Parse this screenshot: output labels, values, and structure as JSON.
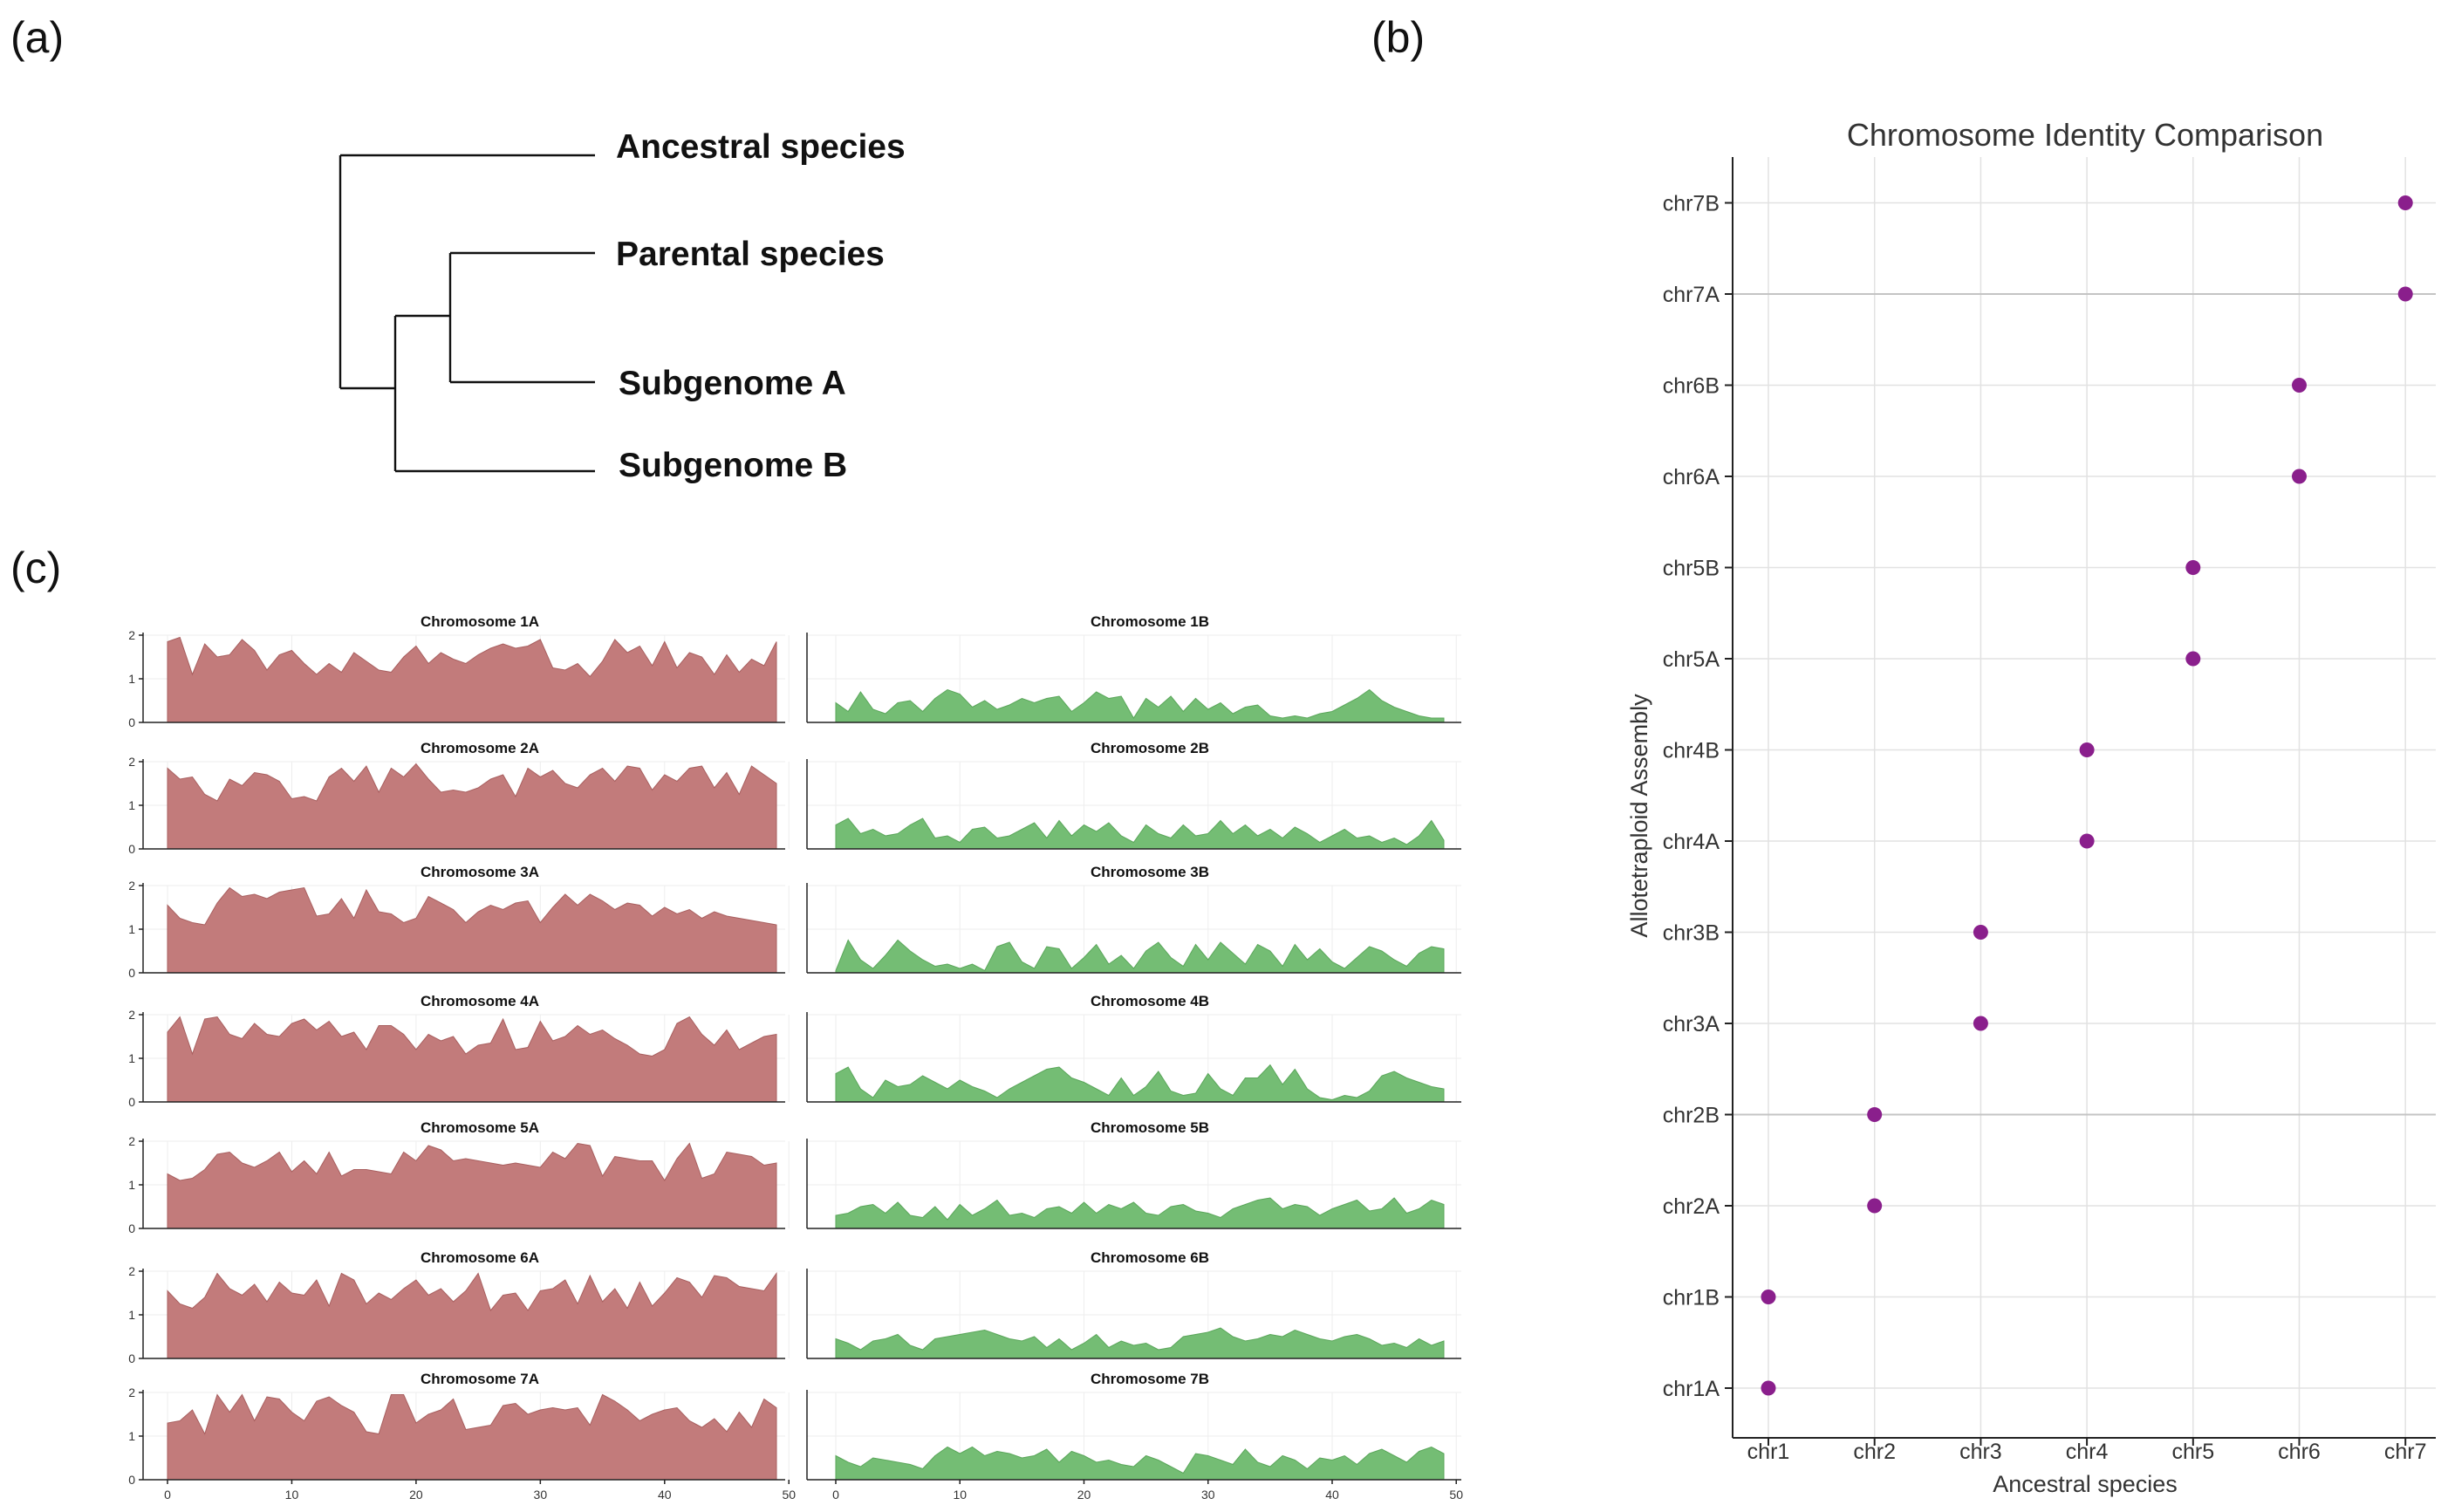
{
  "colors": {
    "subgenome_a_fill": "#c27b7b",
    "subgenome_a_stroke": "#a85f5f",
    "subgenome_b_fill": "#74bd74",
    "subgenome_b_stroke": "#5aa65a",
    "point_color": "#8a1f8c",
    "tree_line": "#111111"
  },
  "panels": {
    "a": {
      "label": "(a)"
    },
    "b": {
      "label": "(b)"
    },
    "c": {
      "label": "(c)"
    }
  },
  "tree": {
    "leaves": [
      "Ancestral species",
      "Parental species",
      "Subgenome A",
      "Subgenome B"
    ]
  },
  "chart_data": [
    {
      "id": "identity-comparison",
      "type": "scatter",
      "title": "Chromosome Identity Comparison",
      "xlabel": "Ancestral species",
      "ylabel": "Allotetraploid Assembly",
      "x_categories": [
        "chr1",
        "chr2",
        "chr3",
        "chr4",
        "chr5",
        "chr6",
        "chr7"
      ],
      "y_categories": [
        "chr1A",
        "chr1B",
        "chr2A",
        "chr2B",
        "chr3A",
        "chr3B",
        "chr4A",
        "chr4B",
        "chr5A",
        "chr5B",
        "chr6A",
        "chr6B",
        "chr7A",
        "chr7B"
      ],
      "points": [
        {
          "x": "chr1",
          "y": "chr1A"
        },
        {
          "x": "chr1",
          "y": "chr1B"
        },
        {
          "x": "chr2",
          "y": "chr2A"
        },
        {
          "x": "chr2",
          "y": "chr2B"
        },
        {
          "x": "chr3",
          "y": "chr3A"
        },
        {
          "x": "chr3",
          "y": "chr3B"
        },
        {
          "x": "chr4",
          "y": "chr4A"
        },
        {
          "x": "chr4",
          "y": "chr4B"
        },
        {
          "x": "chr5",
          "y": "chr5A"
        },
        {
          "x": "chr5",
          "y": "chr5B"
        },
        {
          "x": "chr6",
          "y": "chr6A"
        },
        {
          "x": "chr6",
          "y": "chr6B"
        },
        {
          "x": "chr7",
          "y": "chr7A"
        },
        {
          "x": "chr7",
          "y": "chr7B"
        }
      ],
      "highlighted_rows": [
        "chr2B",
        "chr7A"
      ],
      "grid": true
    },
    {
      "id": "chromosome-density",
      "type": "area",
      "xlim": [
        0,
        50
      ],
      "ylim": [
        0,
        2
      ],
      "xticks": [
        0,
        10,
        20,
        30,
        40,
        50
      ],
      "yticks": [
        0,
        1,
        2
      ],
      "x_start": 0,
      "x_end": 49,
      "subgenome_a": [
        {
          "name": "Chromosome 1A",
          "values": [
            1.85,
            1.95,
            1.1,
            1.8,
            1.5,
            1.55,
            1.9,
            1.65,
            1.2,
            1.55,
            1.65,
            1.35,
            1.1,
            1.35,
            1.15,
            1.6,
            1.4,
            1.2,
            1.15,
            1.5,
            1.75,
            1.35,
            1.6,
            1.45,
            1.35,
            1.55,
            1.7,
            1.8,
            1.7,
            1.75,
            1.9,
            1.25,
            1.2,
            1.35,
            1.05,
            1.4,
            1.9,
            1.6,
            1.75,
            1.3,
            1.85,
            1.25,
            1.6,
            1.5,
            1.1,
            1.55,
            1.15,
            1.45,
            1.3,
            1.85
          ]
        },
        {
          "name": "Chromosome 2A",
          "values": [
            1.85,
            1.6,
            1.65,
            1.25,
            1.1,
            1.6,
            1.45,
            1.75,
            1.7,
            1.55,
            1.15,
            1.2,
            1.1,
            1.65,
            1.85,
            1.55,
            1.9,
            1.3,
            1.85,
            1.65,
            1.95,
            1.6,
            1.3,
            1.35,
            1.3,
            1.4,
            1.6,
            1.7,
            1.2,
            1.85,
            1.65,
            1.8,
            1.5,
            1.4,
            1.7,
            1.85,
            1.55,
            1.9,
            1.85,
            1.35,
            1.7,
            1.55,
            1.85,
            1.9,
            1.4,
            1.75,
            1.25,
            1.9,
            1.7,
            1.5
          ]
        },
        {
          "name": "Chromosome 3A",
          "values": [
            1.55,
            1.25,
            1.15,
            1.1,
            1.6,
            1.95,
            1.75,
            1.8,
            1.7,
            1.85,
            1.9,
            1.95,
            1.3,
            1.35,
            1.7,
            1.25,
            1.9,
            1.4,
            1.35,
            1.15,
            1.25,
            1.75,
            1.6,
            1.45,
            1.15,
            1.4,
            1.55,
            1.45,
            1.6,
            1.65,
            1.15,
            1.5,
            1.8,
            1.55,
            1.8,
            1.65,
            1.45,
            1.6,
            1.55,
            1.3,
            1.5,
            1.35,
            1.45,
            1.25,
            1.4,
            1.3,
            1.25,
            1.2,
            1.15,
            1.1
          ]
        },
        {
          "name": "Chromosome 4A",
          "values": [
            1.6,
            1.95,
            1.1,
            1.9,
            1.95,
            1.55,
            1.45,
            1.8,
            1.55,
            1.5,
            1.8,
            1.9,
            1.65,
            1.85,
            1.5,
            1.6,
            1.2,
            1.75,
            1.75,
            1.55,
            1.2,
            1.55,
            1.4,
            1.5,
            1.1,
            1.3,
            1.35,
            1.9,
            1.2,
            1.25,
            1.85,
            1.4,
            1.5,
            1.75,
            1.55,
            1.65,
            1.45,
            1.3,
            1.1,
            1.05,
            1.2,
            1.8,
            1.95,
            1.55,
            1.3,
            1.65,
            1.2,
            1.35,
            1.5,
            1.55
          ]
        },
        {
          "name": "Chromosome 5A",
          "values": [
            1.25,
            1.1,
            1.15,
            1.35,
            1.7,
            1.75,
            1.5,
            1.4,
            1.55,
            1.75,
            1.3,
            1.55,
            1.25,
            1.75,
            1.2,
            1.35,
            1.35,
            1.3,
            1.25,
            1.75,
            1.55,
            1.9,
            1.8,
            1.55,
            1.6,
            1.55,
            1.5,
            1.45,
            1.5,
            1.45,
            1.4,
            1.75,
            1.6,
            1.95,
            1.9,
            1.2,
            1.65,
            1.6,
            1.55,
            1.55,
            1.1,
            1.6,
            1.95,
            1.15,
            1.25,
            1.75,
            1.7,
            1.65,
            1.45,
            1.5
          ]
        },
        {
          "name": "Chromosome 6A",
          "values": [
            1.55,
            1.25,
            1.15,
            1.4,
            1.95,
            1.6,
            1.45,
            1.7,
            1.3,
            1.75,
            1.5,
            1.45,
            1.8,
            1.2,
            1.95,
            1.8,
            1.25,
            1.5,
            1.35,
            1.6,
            1.8,
            1.45,
            1.6,
            1.3,
            1.55,
            1.95,
            1.1,
            1.45,
            1.5,
            1.1,
            1.55,
            1.6,
            1.8,
            1.25,
            1.9,
            1.3,
            1.6,
            1.15,
            1.75,
            1.2,
            1.5,
            1.85,
            1.75,
            1.4,
            1.9,
            1.85,
            1.65,
            1.6,
            1.55,
            1.95
          ]
        },
        {
          "name": "Chromosome 7A",
          "values": [
            1.3,
            1.35,
            1.6,
            1.05,
            1.95,
            1.55,
            1.95,
            1.35,
            1.9,
            1.85,
            1.55,
            1.35,
            1.8,
            1.9,
            1.7,
            1.55,
            1.1,
            1.05,
            1.95,
            1.95,
            1.3,
            1.5,
            1.6,
            1.85,
            1.15,
            1.2,
            1.25,
            1.7,
            1.75,
            1.5,
            1.6,
            1.65,
            1.6,
            1.65,
            1.25,
            1.95,
            1.8,
            1.6,
            1.35,
            1.5,
            1.6,
            1.65,
            1.35,
            1.2,
            1.4,
            1.1,
            1.55,
            1.2,
            1.85,
            1.65
          ]
        }
      ],
      "subgenome_b": [
        {
          "name": "Chromosome 1B",
          "values": [
            0.45,
            0.25,
            0.7,
            0.3,
            0.2,
            0.45,
            0.5,
            0.25,
            0.55,
            0.75,
            0.65,
            0.35,
            0.5,
            0.3,
            0.4,
            0.55,
            0.45,
            0.55,
            0.6,
            0.25,
            0.45,
            0.7,
            0.55,
            0.6,
            0.1,
            0.55,
            0.35,
            0.6,
            0.25,
            0.55,
            0.3,
            0.45,
            0.2,
            0.35,
            0.4,
            0.15,
            0.1,
            0.15,
            0.1,
            0.2,
            0.25,
            0.4,
            0.55,
            0.75,
            0.5,
            0.35,
            0.25,
            0.15,
            0.1,
            0.1
          ]
        },
        {
          "name": "Chromosome 2B",
          "values": [
            0.55,
            0.7,
            0.35,
            0.45,
            0.3,
            0.35,
            0.55,
            0.7,
            0.25,
            0.3,
            0.15,
            0.45,
            0.5,
            0.25,
            0.3,
            0.45,
            0.6,
            0.25,
            0.65,
            0.3,
            0.55,
            0.4,
            0.6,
            0.3,
            0.15,
            0.55,
            0.35,
            0.25,
            0.55,
            0.3,
            0.35,
            0.65,
            0.35,
            0.55,
            0.3,
            0.45,
            0.25,
            0.5,
            0.35,
            0.15,
            0.3,
            0.45,
            0.25,
            0.3,
            0.15,
            0.25,
            0.1,
            0.3,
            0.65,
            0.2
          ]
        },
        {
          "name": "Chromosome 3B",
          "values": [
            0.05,
            0.75,
            0.3,
            0.1,
            0.4,
            0.75,
            0.5,
            0.3,
            0.15,
            0.2,
            0.1,
            0.2,
            0.05,
            0.6,
            0.7,
            0.25,
            0.1,
            0.6,
            0.55,
            0.1,
            0.35,
            0.65,
            0.2,
            0.4,
            0.1,
            0.5,
            0.7,
            0.35,
            0.15,
            0.65,
            0.3,
            0.7,
            0.45,
            0.2,
            0.65,
            0.5,
            0.15,
            0.65,
            0.3,
            0.55,
            0.25,
            0.1,
            0.35,
            0.6,
            0.5,
            0.3,
            0.15,
            0.45,
            0.6,
            0.55
          ]
        },
        {
          "name": "Chromosome 4B",
          "values": [
            0.65,
            0.8,
            0.3,
            0.1,
            0.5,
            0.35,
            0.4,
            0.6,
            0.45,
            0.3,
            0.5,
            0.35,
            0.25,
            0.1,
            0.3,
            0.45,
            0.6,
            0.75,
            0.8,
            0.55,
            0.45,
            0.3,
            0.15,
            0.55,
            0.15,
            0.35,
            0.7,
            0.25,
            0.15,
            0.2,
            0.65,
            0.3,
            0.15,
            0.55,
            0.55,
            0.85,
            0.4,
            0.75,
            0.3,
            0.1,
            0.05,
            0.15,
            0.1,
            0.25,
            0.6,
            0.7,
            0.55,
            0.45,
            0.35,
            0.3
          ]
        },
        {
          "name": "Chromosome 5B",
          "values": [
            0.3,
            0.35,
            0.5,
            0.55,
            0.35,
            0.6,
            0.3,
            0.25,
            0.5,
            0.2,
            0.55,
            0.3,
            0.45,
            0.65,
            0.3,
            0.35,
            0.25,
            0.45,
            0.5,
            0.35,
            0.6,
            0.35,
            0.55,
            0.45,
            0.6,
            0.35,
            0.3,
            0.5,
            0.55,
            0.4,
            0.35,
            0.25,
            0.45,
            0.55,
            0.65,
            0.7,
            0.45,
            0.55,
            0.5,
            0.3,
            0.45,
            0.55,
            0.65,
            0.4,
            0.45,
            0.7,
            0.35,
            0.45,
            0.65,
            0.55
          ]
        },
        {
          "name": "Chromosome 6B",
          "values": [
            0.45,
            0.35,
            0.2,
            0.4,
            0.45,
            0.55,
            0.3,
            0.2,
            0.45,
            0.5,
            0.55,
            0.6,
            0.65,
            0.55,
            0.45,
            0.4,
            0.5,
            0.25,
            0.45,
            0.2,
            0.35,
            0.55,
            0.25,
            0.4,
            0.3,
            0.35,
            0.2,
            0.25,
            0.5,
            0.55,
            0.6,
            0.7,
            0.5,
            0.4,
            0.45,
            0.55,
            0.5,
            0.65,
            0.55,
            0.45,
            0.4,
            0.5,
            0.55,
            0.45,
            0.3,
            0.35,
            0.25,
            0.45,
            0.3,
            0.4
          ]
        },
        {
          "name": "Chromosome 7B",
          "values": [
            0.55,
            0.4,
            0.3,
            0.5,
            0.45,
            0.4,
            0.35,
            0.25,
            0.55,
            0.75,
            0.6,
            0.75,
            0.55,
            0.65,
            0.6,
            0.5,
            0.55,
            0.7,
            0.4,
            0.65,
            0.55,
            0.4,
            0.45,
            0.35,
            0.3,
            0.55,
            0.45,
            0.3,
            0.15,
            0.6,
            0.55,
            0.45,
            0.35,
            0.7,
            0.4,
            0.3,
            0.55,
            0.45,
            0.25,
            0.5,
            0.45,
            0.55,
            0.35,
            0.6,
            0.7,
            0.55,
            0.4,
            0.65,
            0.75,
            0.6
          ]
        }
      ]
    }
  ]
}
